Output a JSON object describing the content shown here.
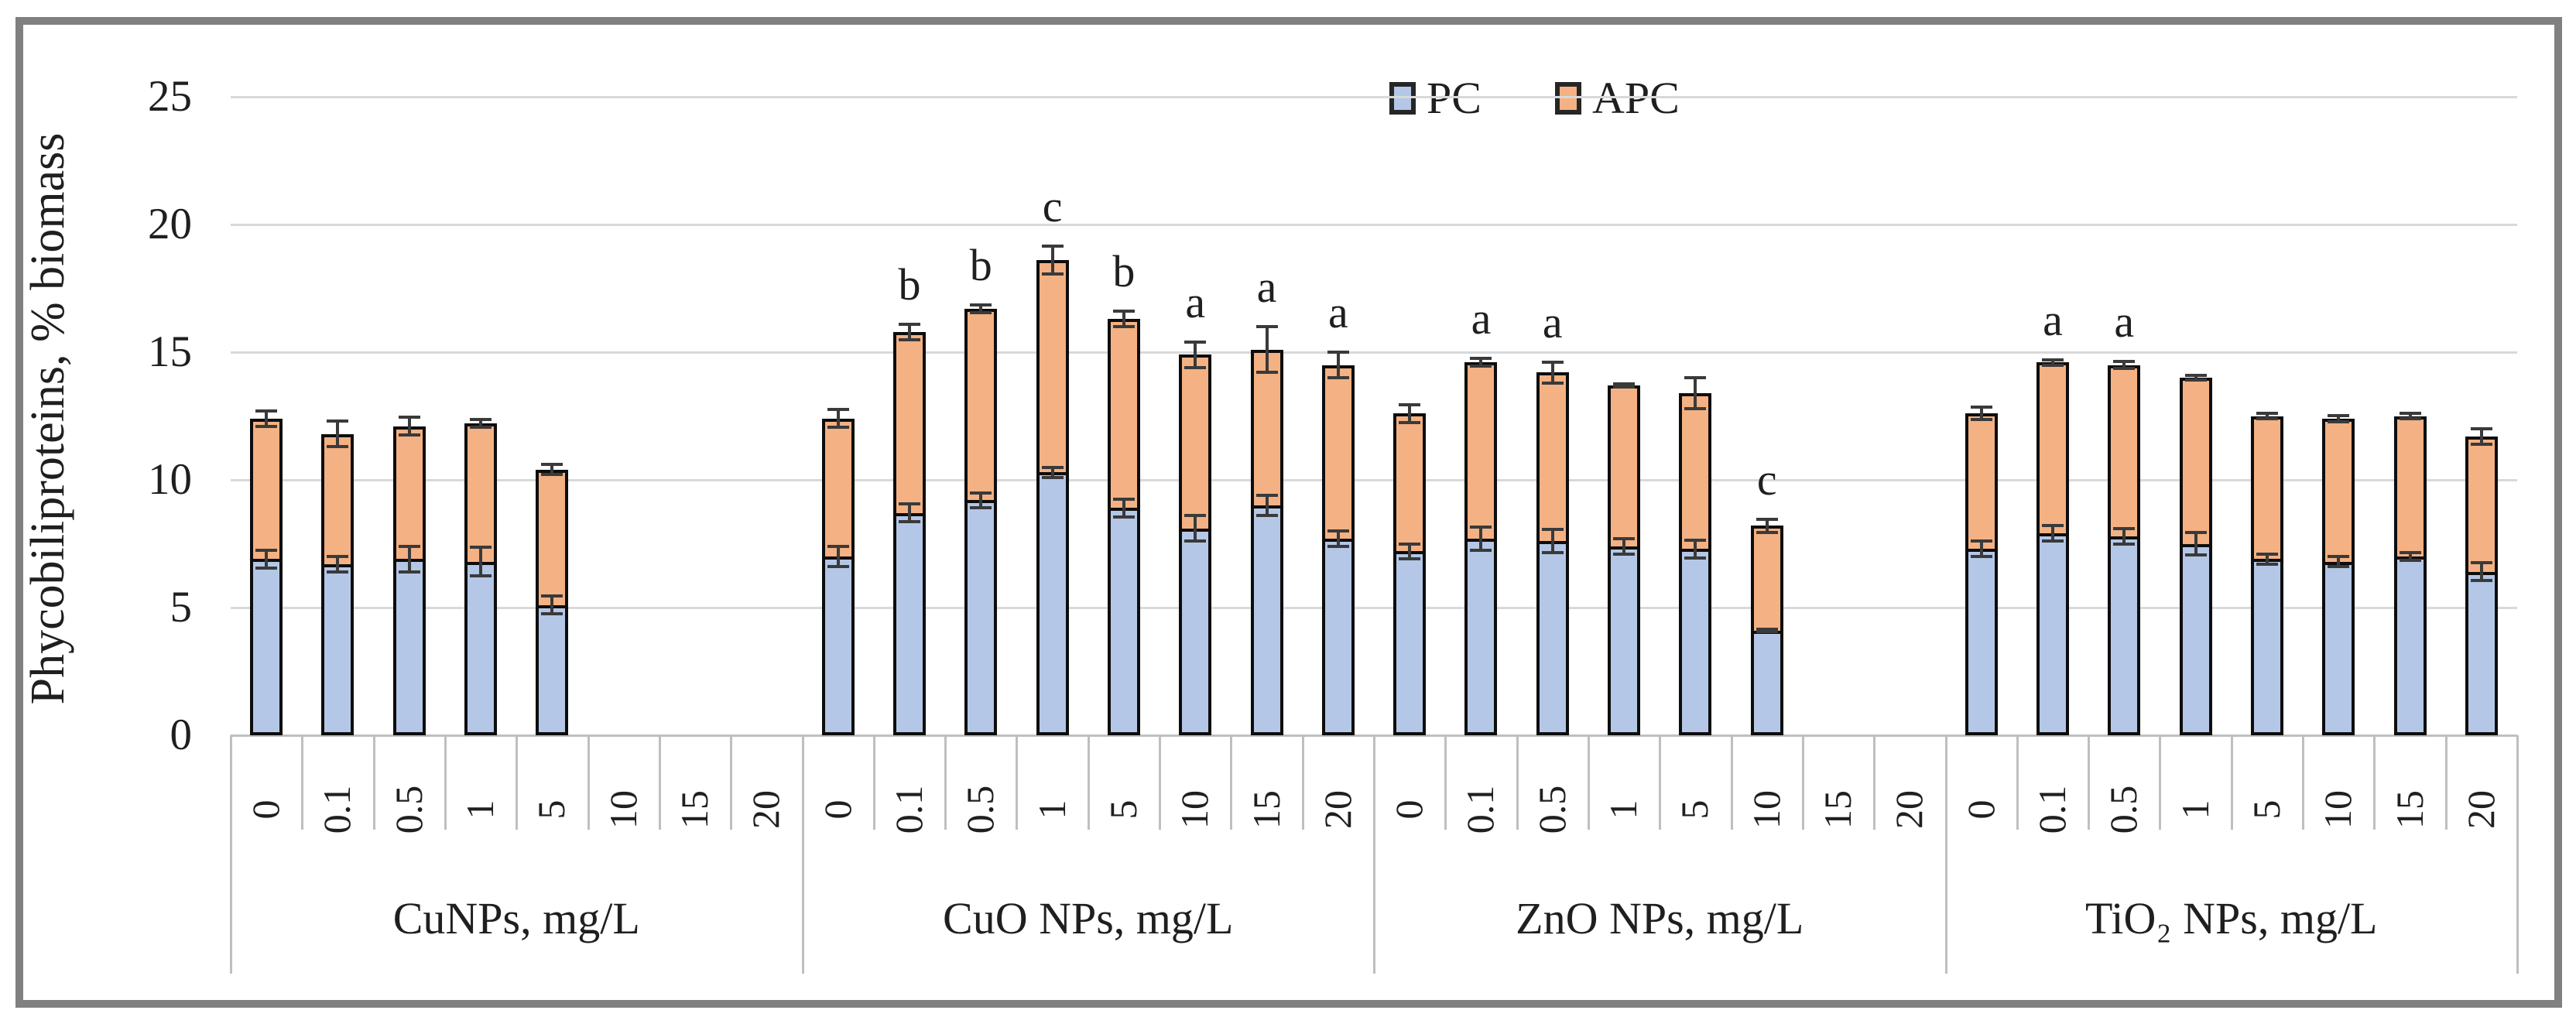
{
  "figure": {
    "frame_color": "#808080",
    "background": "#ffffff"
  },
  "chart_data": {
    "type": "bar",
    "stacked": true,
    "title": "",
    "xlabel": "",
    "ylabel": "Phycobiliproteins, % biomass",
    "ylim": [
      0,
      25
    ],
    "y_ticks": [
      0,
      5,
      10,
      15,
      20,
      25
    ],
    "grid": true,
    "legend_position": "top-center",
    "legend": [
      {
        "label": "PC",
        "color": "#B4C7E7"
      },
      {
        "label": "APC",
        "color": "#F4B183"
      }
    ],
    "categories": [
      "0",
      "0.1",
      "0.5",
      "1",
      "5",
      "10",
      "15",
      "20"
    ],
    "groups": [
      {
        "label": "CuNPs, mg/L",
        "series": {
          "PC": [
            6.9,
            6.7,
            6.9,
            6.8,
            5.1,
            0,
            0,
            0
          ],
          "APC": [
            5.5,
            5.1,
            5.2,
            5.4,
            5.3,
            0,
            0,
            0
          ]
        },
        "totals": [
          12.4,
          11.8,
          12.1,
          12.2,
          10.4,
          0,
          0,
          0
        ],
        "sig_letters": [
          "",
          "",
          "",
          "",
          "",
          "",
          "",
          ""
        ],
        "err_total": [
          0.3,
          0.5,
          0.35,
          0.15,
          0.2,
          0,
          0,
          0
        ],
        "err_pc": [
          0.35,
          0.3,
          0.5,
          0.55,
          0.35,
          0,
          0,
          0
        ]
      },
      {
        "label": "CuO NPs, mg/L",
        "series": {
          "PC": [
            7.0,
            8.7,
            9.2,
            10.3,
            8.9,
            8.1,
            9.0,
            7.7
          ],
          "APC": [
            5.4,
            7.1,
            7.5,
            8.3,
            7.4,
            6.8,
            6.1,
            6.8
          ]
        },
        "totals": [
          12.4,
          15.8,
          16.7,
          18.6,
          16.3,
          14.9,
          15.1,
          14.5
        ],
        "sig_letters": [
          "",
          "b",
          "b",
          "c",
          "b",
          "a",
          "a",
          "a"
        ],
        "err_total": [
          0.35,
          0.3,
          0.15,
          0.55,
          0.3,
          0.5,
          0.9,
          0.5
        ],
        "err_pc": [
          0.4,
          0.35,
          0.3,
          0.2,
          0.35,
          0.5,
          0.4,
          0.3
        ]
      },
      {
        "label": "ZnO NPs, mg/L",
        "series": {
          "PC": [
            7.2,
            7.7,
            7.6,
            7.4,
            7.3,
            4.1,
            0,
            0
          ],
          "APC": [
            5.4,
            6.9,
            6.6,
            6.3,
            6.1,
            4.1,
            0,
            0
          ]
        },
        "totals": [
          12.6,
          14.6,
          14.2,
          13.7,
          13.4,
          8.2,
          0,
          0
        ],
        "sig_letters": [
          "",
          "a",
          "a",
          "",
          "",
          "c",
          "",
          ""
        ],
        "err_total": [
          0.35,
          0.15,
          0.4,
          0.05,
          0.6,
          0.25,
          0,
          0
        ],
        "err_pc": [
          0.3,
          0.45,
          0.45,
          0.3,
          0.35,
          0.05,
          0,
          0
        ]
      },
      {
        "label": "TiO₂ NPs, mg/L",
        "series": {
          "PC": [
            7.3,
            7.9,
            7.8,
            7.5,
            6.9,
            6.8,
            7.0,
            6.4
          ],
          "APC": [
            5.3,
            6.7,
            6.7,
            6.5,
            5.6,
            5.6,
            5.5,
            5.3
          ]
        },
        "totals": [
          12.6,
          14.6,
          14.5,
          14.0,
          12.5,
          12.4,
          12.5,
          11.7
        ],
        "sig_letters": [
          "",
          "a",
          "a",
          "",
          "",
          "",
          "",
          ""
        ],
        "err_total": [
          0.25,
          0.1,
          0.15,
          0.1,
          0.12,
          0.12,
          0.1,
          0.3
        ],
        "err_pc": [
          0.3,
          0.3,
          0.3,
          0.45,
          0.2,
          0.2,
          0.15,
          0.35
        ]
      }
    ],
    "colors": {
      "pc_fill": "#B4C7E7",
      "apc_fill": "#F4B183",
      "bar_border": "#0d0d0d",
      "error_bar": "#3a3a3a",
      "gridline": "#d9d9d9",
      "axis_line": "#bfbfbf",
      "text": "#1f1f1f"
    }
  }
}
